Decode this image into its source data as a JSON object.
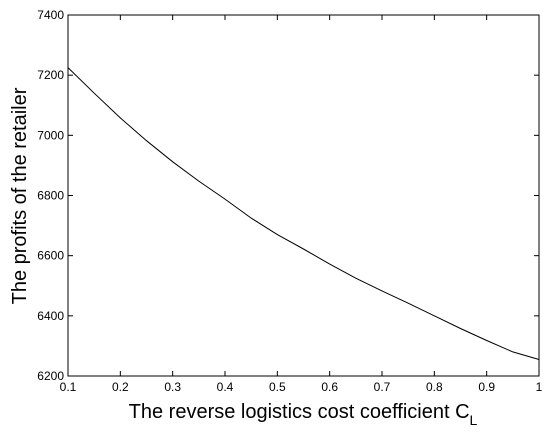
{
  "chart_data": {
    "type": "line",
    "title": "",
    "xlabel": "The reverse logistics cost coefficient C",
    "xlabel_subscript": "L",
    "ylabel": "The profits of the retailer",
    "xlim": [
      0.1,
      1
    ],
    "ylim": [
      6200,
      7400
    ],
    "xticks": [
      "0.1",
      "0.2",
      "0.3",
      "0.4",
      "0.5",
      "0.6",
      "0.7",
      "0.8",
      "0.9",
      "1"
    ],
    "yticks": [
      "6200",
      "6400",
      "6600",
      "6800",
      "7000",
      "7200",
      "7400"
    ],
    "grid": false,
    "line_color": "#000000",
    "series": [
      {
        "x": [
          0.1,
          0.15,
          0.2,
          0.25,
          0.3,
          0.35,
          0.4,
          0.45,
          0.5,
          0.55,
          0.6,
          0.65,
          0.7,
          0.75,
          0.8,
          0.85,
          0.9,
          0.95,
          1.0
        ],
        "values": [
          7225,
          7140,
          7058,
          6982,
          6912,
          6848,
          6788,
          6725,
          6670,
          6622,
          6572,
          6525,
          6483,
          6442,
          6400,
          6358,
          6318,
          6280,
          6255
        ]
      }
    ]
  }
}
